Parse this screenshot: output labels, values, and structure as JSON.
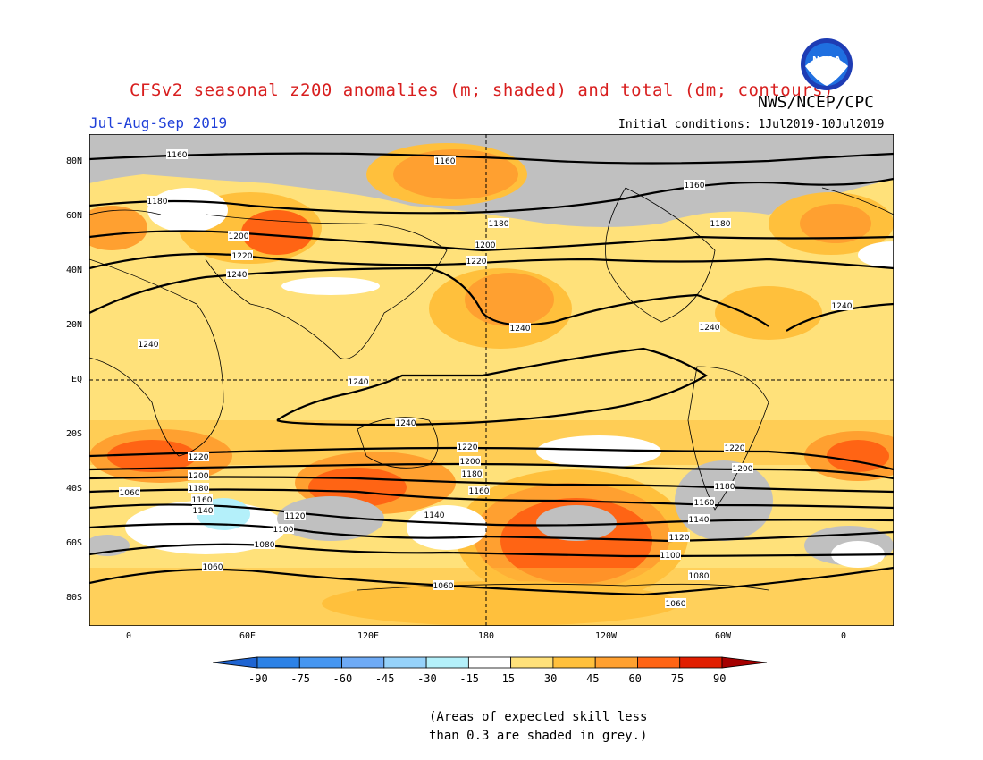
{
  "title": "CFSv2 seasonal z200 anomalies (m; shaded) and total (dm; contours)",
  "agency": "NWS/NCEP/CPC",
  "logo_text": "NOAA",
  "season": "Jul-Aug-Sep 2019",
  "initial_conditions": "Initial conditions: 1Jul2019-10Jul2019",
  "lat_labels": [
    "80N",
    "60N",
    "40N",
    "20N",
    "EQ",
    "20S",
    "40S",
    "60S",
    "80S"
  ],
  "lon_labels": [
    "0",
    "60E",
    "120E",
    "180",
    "120W",
    "60W",
    "0"
  ],
  "colorbar": {
    "labels": [
      "-90",
      "-75",
      "-60",
      "-45",
      "-30",
      "-15",
      "15",
      "30",
      "45",
      "60",
      "75",
      "90"
    ],
    "colors": [
      "#1e64d2",
      "#2d82e6",
      "#4696f0",
      "#6eaaf5",
      "#96d2fa",
      "#b4f0fa",
      "#ffffff",
      "#ffe17a",
      "#ffc03c",
      "#ffa030",
      "#ff6414",
      "#e11e00",
      "#a50000"
    ]
  },
  "contour_labels": [
    "1160",
    "1160",
    "1160",
    "1180",
    "1180",
    "1180",
    "1200",
    "1200",
    "1220",
    "1220",
    "1240",
    "1240",
    "1240",
    "1240",
    "1240",
    "1240",
    "1240",
    "1220",
    "1220",
    "1200",
    "1200",
    "1180",
    "1180",
    "1160",
    "1160",
    "1140",
    "1140",
    "1140",
    "1120",
    "1100",
    "1080",
    "1060",
    "1060",
    "1060",
    "1060",
    "1160",
    "1180",
    "1200",
    "1220",
    "1100",
    "1120",
    "1080"
  ],
  "skill_note": "(Areas of expected skill less\nthan 0.3 are shaded in grey.)",
  "palette": {
    "ocean_base": "#ffe17a",
    "grey_low_skill": "#c0c0c0",
    "title_red": "#d81e1e",
    "season_blue": "#1f3fd8"
  }
}
